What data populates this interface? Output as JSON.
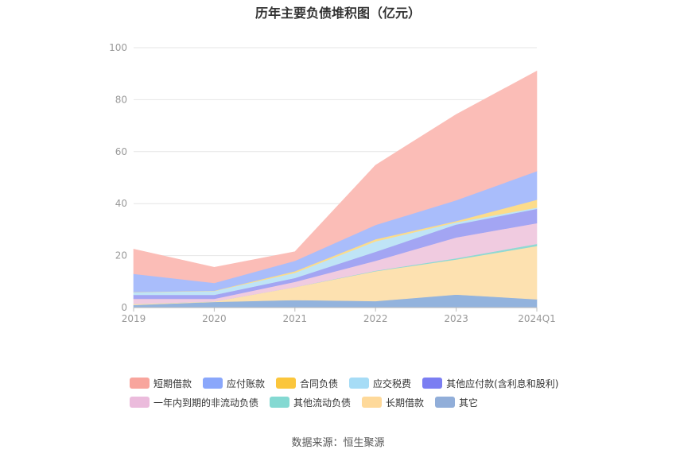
{
  "page": {
    "title": "历年主要负债堆积图（亿元）",
    "source": "数据来源：恒生聚源"
  },
  "chart_data": {
    "type": "area",
    "stacked": true,
    "title": "历年主要负债堆积图（亿元）",
    "categories": [
      "2019",
      "2020",
      "2021",
      "2022",
      "2023",
      "2024Q1"
    ],
    "ylim": [
      0,
      100
    ],
    "yticks": [
      0,
      20,
      40,
      60,
      80,
      100
    ],
    "grid": true,
    "legend_position": "bottom",
    "series": [
      {
        "name": "其它",
        "color": "#93b3dd",
        "values": [
          1.0,
          2.2,
          2.9,
          2.5,
          5.0,
          3.2
        ]
      },
      {
        "name": "长期借款",
        "color": "#fde1b0",
        "values": [
          0.4,
          0.2,
          5.0,
          11.5,
          13.5,
          20.5
        ]
      },
      {
        "name": "其他流动负债",
        "color": "#8fd9d3",
        "values": [
          0.0,
          0.0,
          0.0,
          0.2,
          0.5,
          0.8
        ]
      },
      {
        "name": "一年内到期的非流动负债",
        "color": "#f0cbe0",
        "values": [
          2.0,
          1.0,
          2.0,
          3.8,
          8.0,
          8.0
        ]
      },
      {
        "name": "其他应付款(含利息和股利)",
        "color": "#a3a5f3",
        "values": [
          1.5,
          1.5,
          1.5,
          3.5,
          5.0,
          5.5
        ]
      },
      {
        "name": "应交税费",
        "color": "#bfe4f6",
        "values": [
          1.0,
          1.5,
          2.0,
          4.0,
          0.8,
          0.5
        ]
      },
      {
        "name": "合同负债",
        "color": "#fcdc8a",
        "values": [
          0.1,
          0.1,
          0.6,
          0.8,
          0.5,
          3.0
        ]
      },
      {
        "name": "应付账款",
        "color": "#a9bdfb",
        "values": [
          7.0,
          3.0,
          4.0,
          5.5,
          8.0,
          11.0
        ]
      },
      {
        "name": "短期借款",
        "color": "#fbbdb7",
        "values": [
          9.5,
          6.0,
          3.5,
          23.0,
          33.0,
          38.5
        ]
      }
    ],
    "legend": [
      {
        "name": "短期借款",
        "color": "#f8a59d"
      },
      {
        "name": "应付账款",
        "color": "#8aa7fb"
      },
      {
        "name": "合同负债",
        "color": "#fbc63c"
      },
      {
        "name": "应交税费",
        "color": "#a6dcf6"
      },
      {
        "name": "其他应付款(含利息和股利)",
        "color": "#7b7ef2"
      },
      {
        "name": "一年内到期的非流动负债",
        "color": "#ebbbdc"
      },
      {
        "name": "其他流动负债",
        "color": "#84d9d2"
      },
      {
        "name": "长期借款",
        "color": "#fed99a"
      },
      {
        "name": "其它",
        "color": "#91aed9"
      }
    ]
  }
}
